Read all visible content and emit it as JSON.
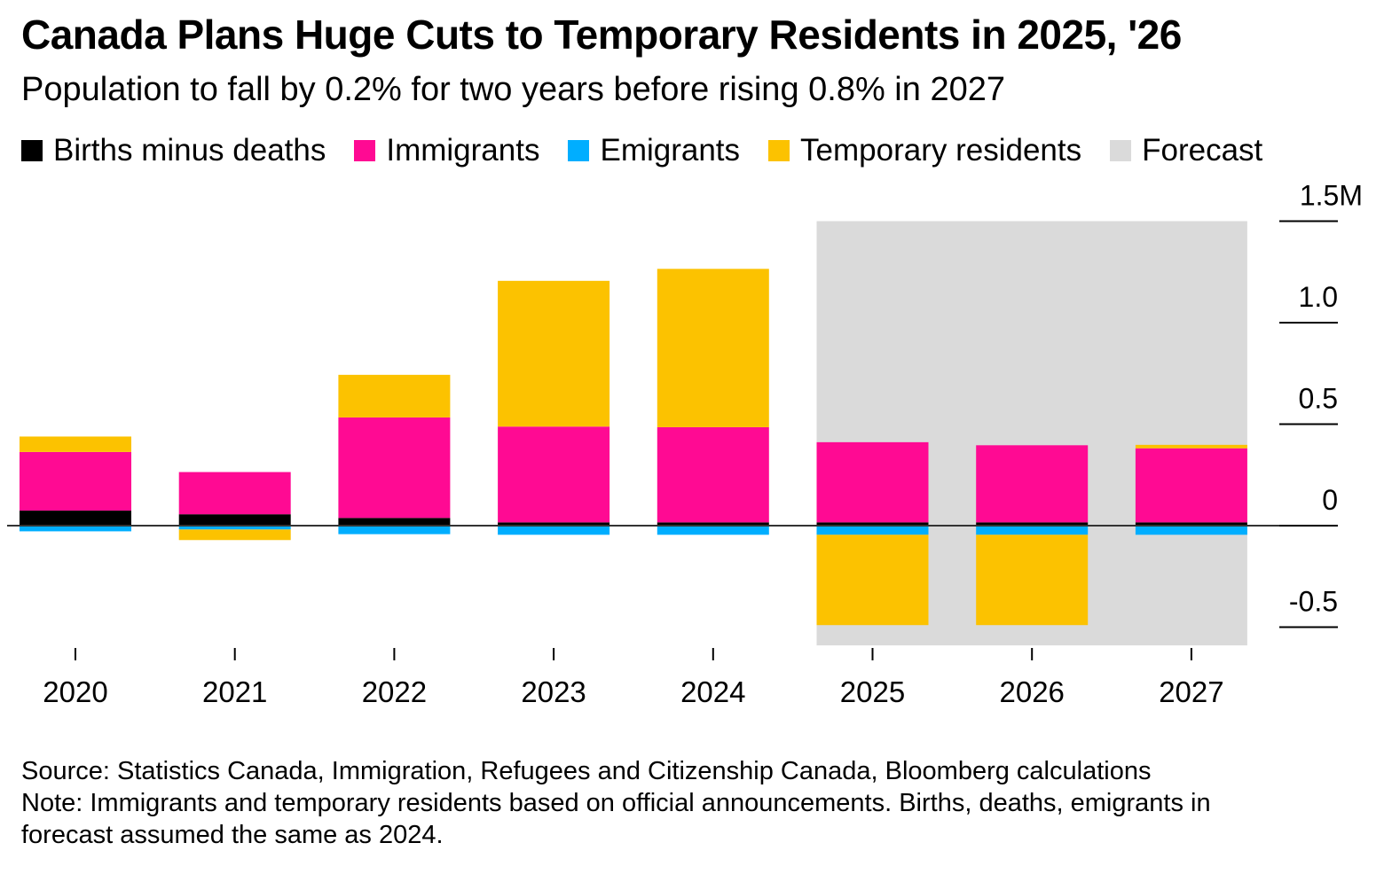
{
  "title": "Canada Plans Huge Cuts to Temporary Residents in 2025, '26",
  "subtitle": "Population to fall by 0.2% for two years before rising 0.8% in 2027",
  "legend": [
    {
      "label": "Births minus deaths",
      "color": "#000000"
    },
    {
      "label": "Immigrants",
      "color": "#ff0a93"
    },
    {
      "label": "Emigrants",
      "color": "#00aeff"
    },
    {
      "label": "Temporary residents",
      "color": "#fcc200"
    },
    {
      "label": "Forecast",
      "color": "#dadada"
    }
  ],
  "source": "Source: Statistics Canada, Immigration, Refugees and Citizenship Canada, Bloomberg calculations",
  "note_line1": "Note: Immigrants and temporary residents based on official announcements. Births, deaths, emigrants in",
  "note_line2": "forecast assumed the same as 2024.",
  "chart_data": {
    "type": "bar",
    "stacked": true,
    "categories": [
      "2020",
      "2021",
      "2022",
      "2023",
      "2024",
      "2025",
      "2026",
      "2027"
    ],
    "series": [
      {
        "name": "Births minus deaths",
        "color": "#000000",
        "values": [
          0.074,
          0.056,
          0.038,
          0.016,
          0.016,
          0.016,
          0.016,
          0.016
        ]
      },
      {
        "name": "Immigrants",
        "color": "#ff0a93",
        "values": [
          0.289,
          0.208,
          0.495,
          0.472,
          0.469,
          0.395,
          0.38,
          0.365
        ]
      },
      {
        "name": "Emigrants",
        "color": "#00aeff",
        "values": [
          -0.028,
          -0.019,
          -0.042,
          -0.045,
          -0.045,
          -0.045,
          -0.045,
          -0.045
        ]
      },
      {
        "name": "Temporary residents",
        "color": "#fcc200",
        "values": [
          0.076,
          -0.052,
          0.21,
          0.718,
          0.78,
          -0.445,
          -0.445,
          0.017
        ]
      }
    ],
    "forecast": {
      "label": "Forecast",
      "from": "2025",
      "to": "2027",
      "color": "#dadada"
    },
    "yticks": [
      -0.5,
      0,
      0.5,
      1.0,
      1.5
    ],
    "ytick_labels": [
      "-0.5",
      "0",
      "0.5",
      "1.0",
      "1.5M"
    ],
    "ylim": [
      -0.59,
      1.5
    ],
    "y_axis_side": "right",
    "grid": false
  }
}
